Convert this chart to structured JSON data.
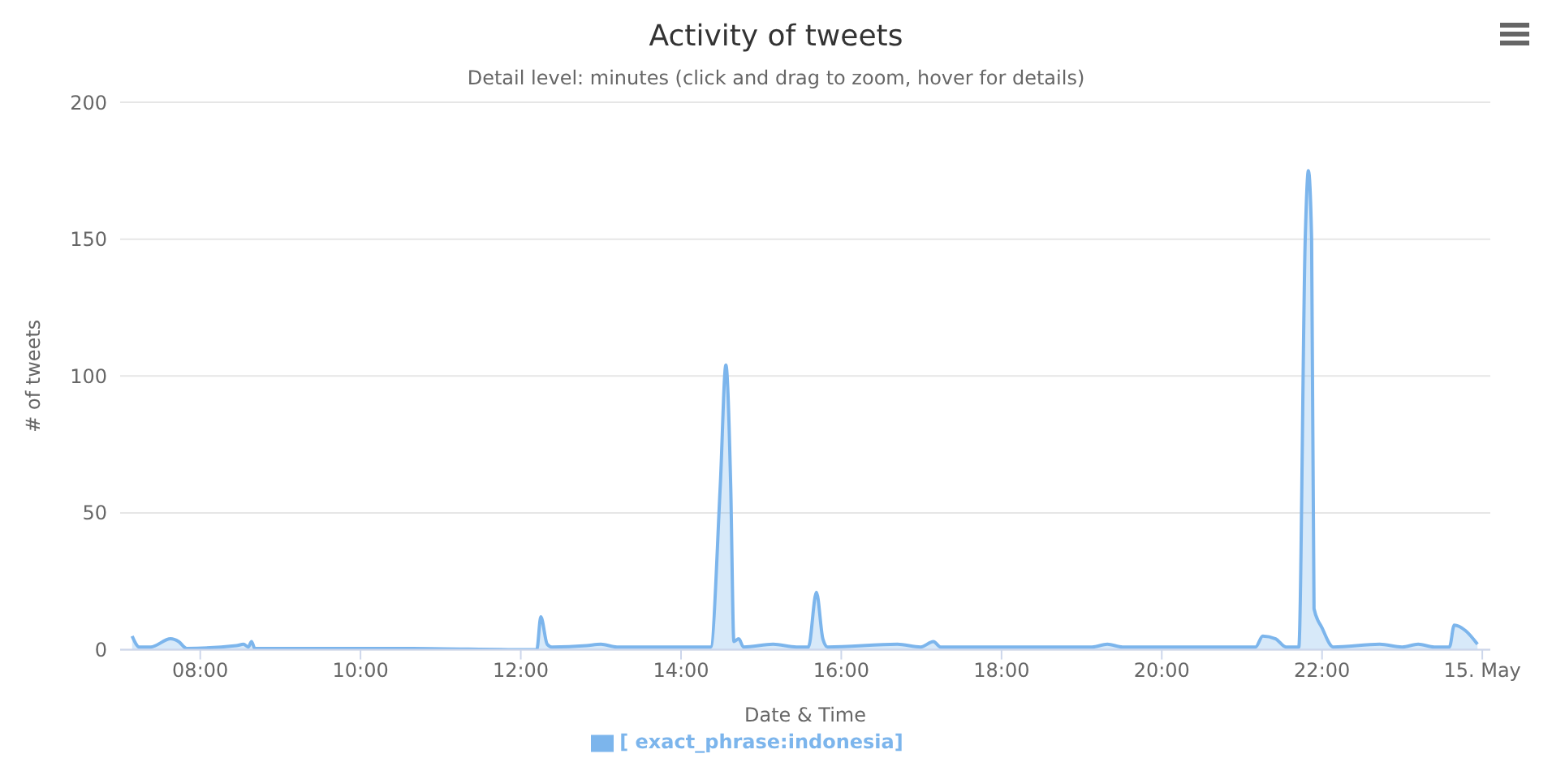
{
  "chart_data": {
    "type": "area",
    "title": "Activity of tweets",
    "subtitle": "Detail level: minutes (click and drag to zoom, hover for details)",
    "xlabel": "Date & Time",
    "ylabel": "# of tweets",
    "xlim": [
      7,
      24.1
    ],
    "xticks": [
      {
        "value": 8,
        "label": "08:00"
      },
      {
        "value": 10,
        "label": "10:00"
      },
      {
        "value": 12,
        "label": "12:00"
      },
      {
        "value": 14,
        "label": "14:00"
      },
      {
        "value": 16,
        "label": "16:00"
      },
      {
        "value": 18,
        "label": "18:00"
      },
      {
        "value": 20,
        "label": "20:00"
      },
      {
        "value": 22,
        "label": "22:00"
      },
      {
        "value": 24,
        "label": "15. May"
      }
    ],
    "ylim": [
      0,
      200
    ],
    "yticks": [
      0,
      50,
      100,
      150,
      200
    ],
    "grid": "y",
    "legend": "bottom",
    "marker": "none",
    "line_style": "solid",
    "series": [
      {
        "name": "[ exact_phrase:indonesia]",
        "color": "#7cb5ec",
        "x": [
          7.15,
          7.24,
          7.38,
          7.63,
          7.73,
          7.83,
          8.45,
          8.54,
          8.6,
          8.64,
          8.68,
          10.5,
          12.2,
          12.25,
          12.33,
          12.39,
          12.82,
          13.0,
          13.2,
          14.37,
          14.49,
          14.56,
          14.62,
          14.66,
          14.72,
          14.78,
          15.15,
          15.44,
          15.59,
          15.69,
          15.77,
          15.83,
          16.7,
          16.99,
          17.15,
          17.24,
          18.0,
          19.13,
          19.32,
          19.51,
          20.5,
          21.17,
          21.26,
          21.42,
          21.55,
          21.71,
          21.79,
          21.83,
          21.87,
          21.9,
          22.0,
          22.14,
          22.72,
          23.0,
          23.2,
          23.4,
          23.59,
          23.65,
          23.79,
          23.94
        ],
        "values": [
          5,
          1,
          1,
          4,
          3,
          0.5,
          1.5,
          2,
          1,
          3,
          0.5,
          0.5,
          0,
          12,
          2,
          1,
          1.5,
          2,
          1,
          1,
          60,
          104,
          60,
          3,
          4,
          1,
          2,
          1,
          1,
          21,
          4,
          1,
          2,
          1,
          3,
          1,
          1,
          1,
          2,
          1,
          1,
          1,
          5,
          4,
          1,
          1,
          150,
          175,
          150,
          15,
          8,
          1,
          2,
          1,
          2,
          1,
          1,
          9,
          7,
          2
        ]
      }
    ]
  }
}
